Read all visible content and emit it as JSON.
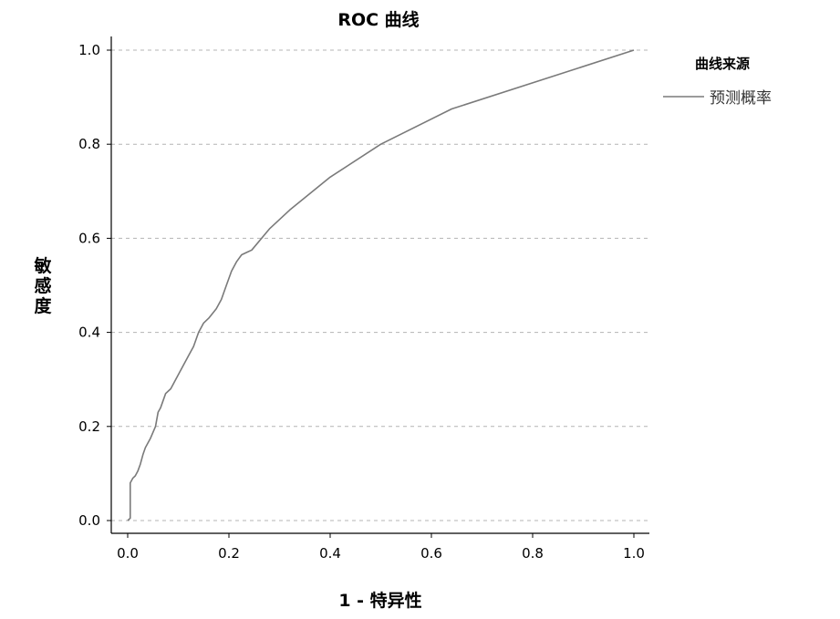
{
  "chart_data": {
    "type": "line",
    "title": "ROC 曲线",
    "xlabel": "1 - 特异性",
    "ylabel": "敏感度",
    "xlim": [
      0,
      1
    ],
    "ylim": [
      0,
      1
    ],
    "x_ticks": [
      "0.0",
      "0.2",
      "0.4",
      "0.6",
      "0.8",
      "1.0"
    ],
    "y_ticks": [
      "0.0",
      "0.2",
      "0.4",
      "0.6",
      "0.8",
      "1.0"
    ],
    "grid": "horizontal dashed",
    "legend": {
      "title": "曲线来源",
      "placement": "right",
      "entries": [
        "预测概率"
      ]
    },
    "series": [
      {
        "name": "预测概率",
        "color": "#7a7a7a",
        "x": [
          0.0,
          0.005,
          0.005,
          0.01,
          0.015,
          0.02,
          0.025,
          0.03,
          0.035,
          0.045,
          0.055,
          0.06,
          0.065,
          0.075,
          0.085,
          0.1,
          0.12,
          0.13,
          0.14,
          0.15,
          0.16,
          0.175,
          0.185,
          0.195,
          0.205,
          0.215,
          0.225,
          0.235,
          0.245,
          0.28,
          0.32,
          0.4,
          0.5,
          0.64,
          1.0
        ],
        "y": [
          0.0,
          0.005,
          0.08,
          0.09,
          0.095,
          0.105,
          0.12,
          0.14,
          0.155,
          0.175,
          0.2,
          0.23,
          0.24,
          0.27,
          0.28,
          0.31,
          0.35,
          0.37,
          0.4,
          0.42,
          0.43,
          0.45,
          0.47,
          0.5,
          0.53,
          0.55,
          0.565,
          0.57,
          0.575,
          0.62,
          0.66,
          0.73,
          0.8,
          0.875,
          1.0
        ]
      }
    ]
  }
}
